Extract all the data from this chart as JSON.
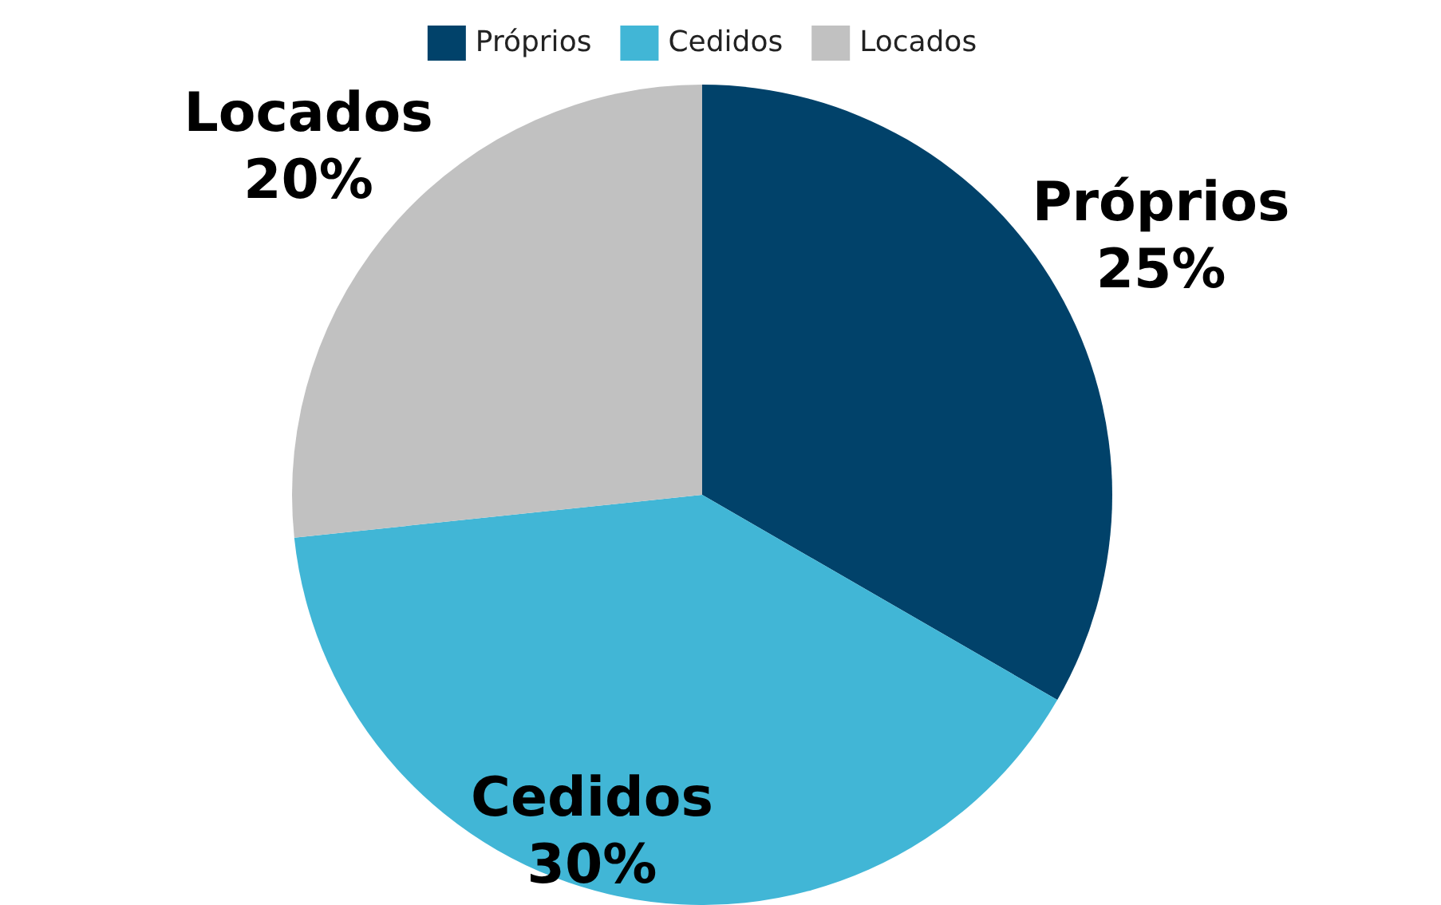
{
  "chart_data": {
    "type": "pie",
    "categories": [
      "Próprios",
      "Cedidos",
      "Locados"
    ],
    "values": [
      25,
      30,
      20
    ],
    "value_labels": [
      "25%",
      "30%",
      "20%"
    ],
    "colors": [
      "#01426a",
      "#41b6d6",
      "#c1c1c1"
    ],
    "legend": "top"
  }
}
